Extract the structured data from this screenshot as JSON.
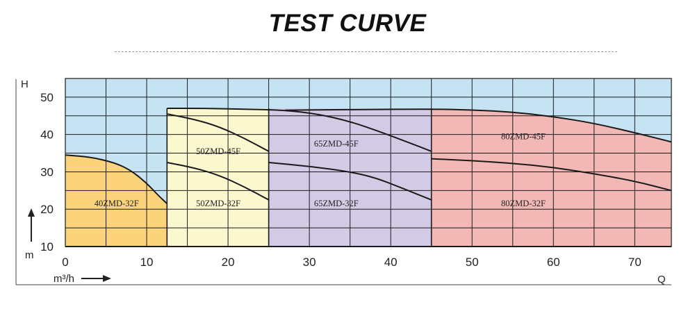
{
  "title": "TEST CURVE",
  "chart_data": {
    "type": "area",
    "title": "TEST CURVE",
    "xlabel": "Q",
    "ylabel": "H",
    "x_unit": "m³/h",
    "y_unit": "m",
    "xlim": [
      0,
      74.5
    ],
    "ylim": [
      10,
      55
    ],
    "x_ticks": [
      0,
      10,
      20,
      30,
      40,
      50,
      60,
      70
    ],
    "y_ticks": [
      10,
      20,
      30,
      40,
      50
    ],
    "grid": true,
    "colors": {
      "background": "#c5e3f3",
      "grid": "#1a1a1a",
      "curve": "#1a1a1a",
      "40ZMD": "#fad37a",
      "50ZMD": "#fbf7cf",
      "65ZMD": "#d3cbe6",
      "80ZMD": "#f2b8b6"
    },
    "regions": [
      {
        "name": "40ZMD",
        "color_key": "40ZMD",
        "x_range": [
          0,
          12.5
        ],
        "top": [
          [
            0,
            34.5
          ],
          [
            3,
            34
          ],
          [
            6,
            32.5
          ],
          [
            8,
            30.5
          ],
          [
            10,
            27
          ],
          [
            11.5,
            23.5
          ],
          [
            12.5,
            21.5
          ]
        ]
      },
      {
        "name": "50ZMD",
        "color_key": "50ZMD",
        "x_range": [
          12.5,
          25
        ],
        "top": [
          [
            12.5,
            47
          ],
          [
            25,
            47
          ]
        ]
      },
      {
        "name": "65ZMD",
        "color_key": "65ZMD",
        "x_range": [
          25,
          45
        ],
        "top": [
          [
            25,
            47
          ],
          [
            45,
            47
          ]
        ]
      },
      {
        "name": "80ZMD",
        "color_key": "80ZMD",
        "x_range": [
          45,
          74.5
        ],
        "top": [
          [
            45,
            46.8
          ],
          [
            50,
            46.6
          ],
          [
            55,
            46
          ],
          [
            60,
            44.8
          ],
          [
            65,
            43
          ],
          [
            70,
            40.5
          ],
          [
            74.5,
            38
          ]
        ]
      }
    ],
    "series": [
      {
        "name": "40ZMD-32F",
        "points": [
          [
            0,
            34.5
          ],
          [
            3,
            34
          ],
          [
            6,
            32.5
          ],
          [
            8,
            30.5
          ],
          [
            10,
            27
          ],
          [
            11.5,
            23.5
          ],
          [
            12.5,
            21.5
          ]
        ]
      },
      {
        "name": "50ZMD-45F",
        "points": [
          [
            12.5,
            45.5
          ],
          [
            16,
            44
          ],
          [
            19,
            42
          ],
          [
            22,
            39
          ],
          [
            25,
            35.5
          ]
        ]
      },
      {
        "name": "50ZMD-32F",
        "points": [
          [
            12.5,
            32.5
          ],
          [
            16,
            31
          ],
          [
            19,
            29
          ],
          [
            22,
            26
          ],
          [
            25,
            22.5
          ]
        ]
      },
      {
        "name": "65ZMD-45F",
        "points": [
          [
            12.5,
            47
          ],
          [
            17,
            47
          ],
          [
            22,
            46.8
          ],
          [
            27,
            46.5
          ],
          [
            31,
            45.5
          ],
          [
            35,
            43.5
          ],
          [
            39,
            40.5
          ],
          [
            42,
            38
          ],
          [
            45,
            35.5
          ]
        ]
      },
      {
        "name": "65ZMD-32F",
        "points": [
          [
            25,
            32.5
          ],
          [
            30,
            31.5
          ],
          [
            35,
            30
          ],
          [
            38,
            28.5
          ],
          [
            41,
            26
          ],
          [
            45,
            22.5
          ]
        ]
      },
      {
        "name": "80ZMD-45F",
        "points": [
          [
            27,
            46.5
          ],
          [
            32,
            46.6
          ],
          [
            37,
            46.7
          ],
          [
            45,
            46.8
          ],
          [
            50,
            46.6
          ],
          [
            55,
            46
          ],
          [
            60,
            44.8
          ],
          [
            65,
            43
          ],
          [
            70,
            40.5
          ],
          [
            74.5,
            38
          ]
        ]
      },
      {
        "name": "80ZMD-32F",
        "points": [
          [
            45,
            33.5
          ],
          [
            50,
            33
          ],
          [
            55,
            32.3
          ],
          [
            60,
            31.2
          ],
          [
            65,
            29.5
          ],
          [
            70,
            27.5
          ],
          [
            74.5,
            25
          ]
        ]
      }
    ],
    "region_labels": [
      {
        "text": "40ZMD-32F",
        "x": 6.3,
        "y": 21.5
      },
      {
        "text": "50ZMD-45F",
        "x": 18.8,
        "y": 35.5
      },
      {
        "text": "50ZMD-32F",
        "x": 18.8,
        "y": 21.5
      },
      {
        "text": "65ZMD-45F",
        "x": 33.3,
        "y": 37.5
      },
      {
        "text": "65ZMD-32F",
        "x": 33.3,
        "y": 21.5
      },
      {
        "text": "80ZMD-45F",
        "x": 56.3,
        "y": 39.5
      },
      {
        "text": "80ZMD-32F",
        "x": 56.3,
        "y": 21.5
      }
    ]
  }
}
